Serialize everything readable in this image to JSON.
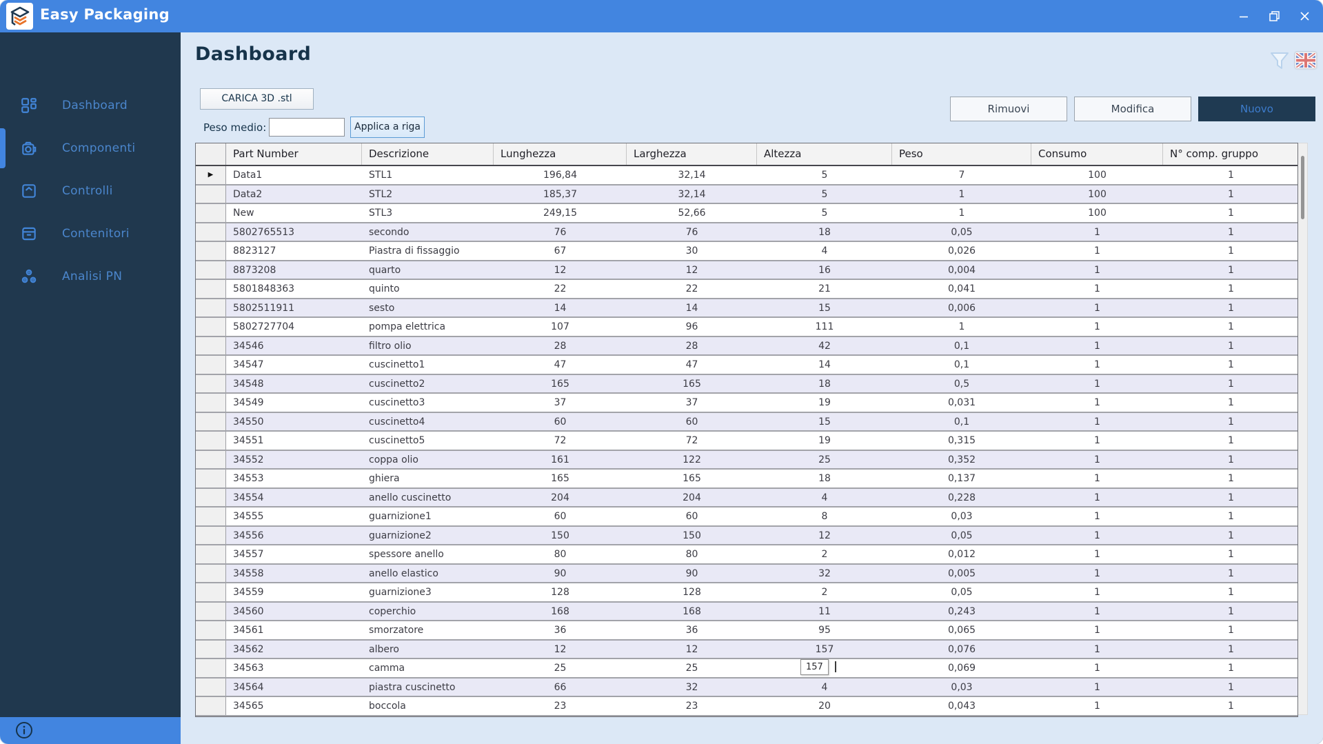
{
  "window": {
    "title": "Easy Packaging",
    "controls": {
      "minimize": "minimize-icon",
      "restore": "restore-icon",
      "close": "close-icon"
    }
  },
  "sidebar": {
    "items": [
      {
        "label": "Dashboard",
        "icon": "dashboard-grid-icon",
        "active": false
      },
      {
        "label": "Componenti",
        "icon": "component-icon",
        "active": true
      },
      {
        "label": "Controlli",
        "icon": "controls-icon",
        "active": false
      },
      {
        "label": "Contenitori",
        "icon": "container-icon",
        "active": false
      },
      {
        "label": "Analisi PN",
        "icon": "analysis-icon",
        "active": false
      }
    ],
    "footer_icon": "info-icon"
  },
  "header": {
    "title": "Dashboard",
    "filter_icon": "filter-funnel-icon",
    "language_flag_icon": "uk-flag-icon"
  },
  "toolbar": {
    "carica_label": "CARICA 3D .stl",
    "peso_medio_label": "Peso medio:",
    "peso_medio_value": "",
    "applica_label": "Applica a riga",
    "rimuovi_label": "Rimuovi",
    "modifica_label": "Modifica",
    "nuovo_label": "Nuovo"
  },
  "table": {
    "columns": [
      "Part Number",
      "Descrizione",
      "Lunghezza",
      "Larghezza",
      "Altezza",
      "Peso",
      "Consumo",
      "N° comp. gruppo"
    ],
    "current_row_indicator": "▶",
    "rows": [
      [
        "Data1",
        "STL1",
        "196,84",
        "32,14",
        "5",
        "7",
        "100",
        "1"
      ],
      [
        "Data2",
        "STL2",
        "185,37",
        "32,14",
        "5",
        "1",
        "100",
        "1"
      ],
      [
        "New",
        "STL3",
        "249,15",
        "52,66",
        "5",
        "1",
        "100",
        "1"
      ],
      [
        "5802765513",
        "secondo",
        "76",
        "76",
        "18",
        "0,05",
        "1",
        "1"
      ],
      [
        "8823127",
        "Piastra di fissaggio",
        "67",
        "30",
        "4",
        "0,026",
        "1",
        "1"
      ],
      [
        "8873208",
        "quarto",
        "12",
        "12",
        "16",
        "0,004",
        "1",
        "1"
      ],
      [
        "5801848363",
        "quinto",
        "22",
        "22",
        "21",
        "0,041",
        "1",
        "1"
      ],
      [
        "5802511911",
        "sesto",
        "14",
        "14",
        "15",
        "0,006",
        "1",
        "1"
      ],
      [
        "5802727704",
        "pompa elettrica",
        "107",
        "96",
        "111",
        "1",
        "1",
        "1"
      ],
      [
        "34546",
        "filtro olio",
        "28",
        "28",
        "42",
        "0,1",
        "1",
        "1"
      ],
      [
        "34547",
        "cuscinetto1",
        "47",
        "47",
        "14",
        "0,1",
        "1",
        "1"
      ],
      [
        "34548",
        "cuscinetto2",
        "165",
        "165",
        "18",
        "0,5",
        "1",
        "1"
      ],
      [
        "34549",
        "cuscinetto3",
        "37",
        "37",
        "19",
        "0,031",
        "1",
        "1"
      ],
      [
        "34550",
        "cuscinetto4",
        "60",
        "60",
        "15",
        "0,1",
        "1",
        "1"
      ],
      [
        "34551",
        "cuscinetto5",
        "72",
        "72",
        "19",
        "0,315",
        "1",
        "1"
      ],
      [
        "34552",
        "coppa olio",
        "161",
        "122",
        "25",
        "0,352",
        "1",
        "1"
      ],
      [
        "34553",
        "ghiera",
        "165",
        "165",
        "18",
        "0,137",
        "1",
        "1"
      ],
      [
        "34554",
        "anello cuscinetto",
        "204",
        "204",
        "4",
        "0,228",
        "1",
        "1"
      ],
      [
        "34555",
        "guarnizione1",
        "60",
        "60",
        "8",
        "0,03",
        "1",
        "1"
      ],
      [
        "34556",
        "guarnizione2",
        "150",
        "150",
        "12",
        "0,05",
        "1",
        "1"
      ],
      [
        "34557",
        "spessore anello",
        "80",
        "80",
        "2",
        "0,012",
        "1",
        "1"
      ],
      [
        "34558",
        "anello elastico",
        "90",
        "90",
        "32",
        "0,005",
        "1",
        "1"
      ],
      [
        "34559",
        "guarnizione3",
        "128",
        "128",
        "2",
        "0,05",
        "1",
        "1"
      ],
      [
        "34560",
        "coperchio",
        "168",
        "168",
        "11",
        "0,243",
        "1",
        "1"
      ],
      [
        "34561",
        "smorzatore",
        "36",
        "36",
        "95",
        "0,065",
        "1",
        "1"
      ],
      [
        "34562",
        "albero",
        "12",
        "12",
        "157",
        "0,076",
        "1",
        "1"
      ],
      [
        "34563",
        "camma",
        "25",
        "25",
        "",
        "0,069",
        "1",
        "1"
      ],
      [
        "34564",
        "piastra cuscinetto",
        "66",
        "32",
        "4",
        "0,03",
        "1",
        "1"
      ],
      [
        "34565",
        "boccola",
        "23",
        "23",
        "20",
        "0,043",
        "1",
        "1"
      ]
    ],
    "tooltip": {
      "text": "157",
      "row_part_number": "34563",
      "column": "Altezza"
    }
  },
  "colors": {
    "accent_blue": "#4285e0",
    "sidebar_navy": "#20384e",
    "content_bg": "#dce8f6",
    "alt_row": "#e9e9f6",
    "nuovo_button_bg": "#1f3a52",
    "logo_orange": "#e8732a"
  }
}
